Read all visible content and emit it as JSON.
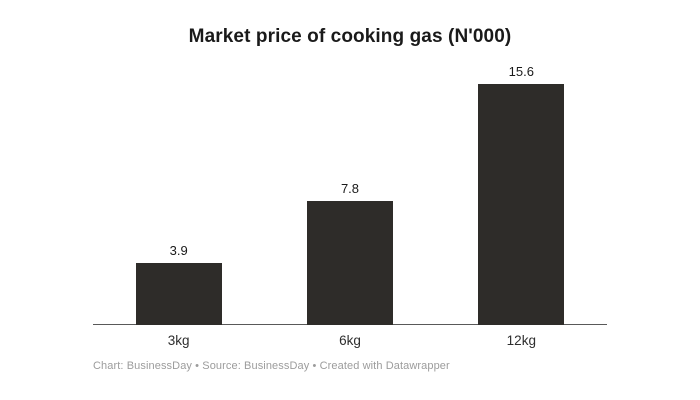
{
  "title": "Market price of cooking gas (N'000)",
  "footer": {
    "text": "Chart: BusinessDay • Source: BusinessDay • Created with Datawrapper"
  },
  "colors": {
    "background": "#ffffff",
    "bar": "#2e2c29",
    "title_text": "#1a1a1a",
    "value_label_text": "#1a1a1a",
    "category_label_text": "#2e2e2e",
    "axis_line": "#595959",
    "footer_text": "#9c9c9c"
  },
  "chart_data": {
    "type": "bar",
    "title": "Market price of cooking gas (N'000)",
    "categories": [
      "3kg",
      "6kg",
      "12kg"
    ],
    "values": [
      3.9,
      7.8,
      15.6
    ],
    "value_labels": [
      "3.9",
      "7.8",
      "15.6"
    ],
    "xlabel": "",
    "ylabel": "",
    "ylim": [
      0,
      16.4
    ],
    "grid": false,
    "legend": false,
    "value_labels_position": "above-bars",
    "orientation": "vertical"
  }
}
